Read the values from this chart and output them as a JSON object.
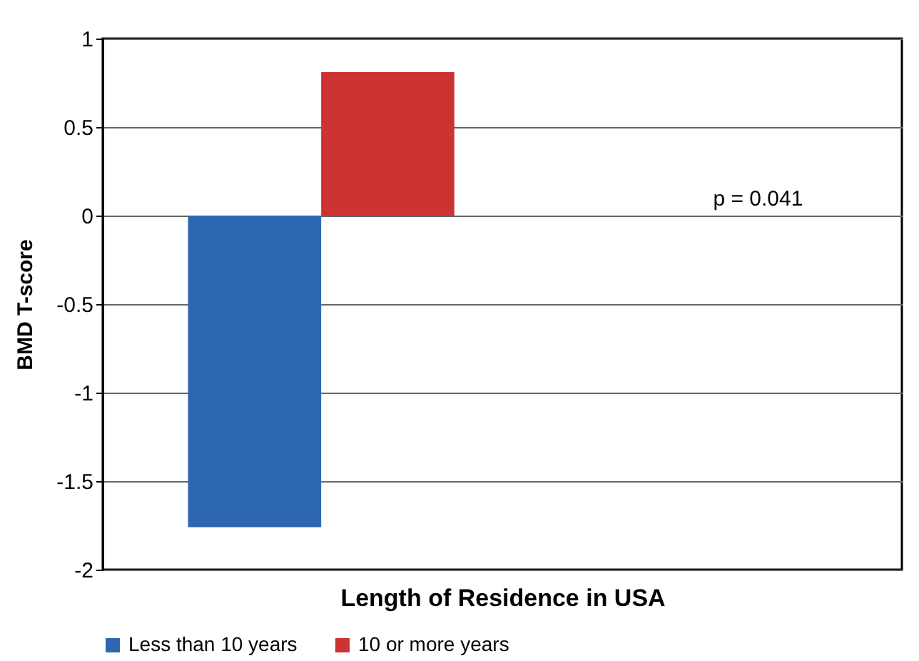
{
  "chart_data": {
    "type": "bar",
    "xlabel": "Length of Residence in USA",
    "ylabel": "BMD T-score",
    "categories": [
      null
    ],
    "series": [
      {
        "name": "Less than 10  years",
        "color": "#2e67b1",
        "values": [
          -1.76
        ]
      },
      {
        "name": "10 or more years",
        "color": "#cc3333",
        "values": [
          0.81
        ]
      }
    ],
    "ylim": [
      -2,
      1
    ],
    "yticks": [
      -2,
      -1.5,
      -1,
      -0.5,
      0,
      0.5,
      1
    ],
    "grid": "y",
    "legend": "bottom",
    "annotations": [
      "p = 0.041"
    ]
  }
}
